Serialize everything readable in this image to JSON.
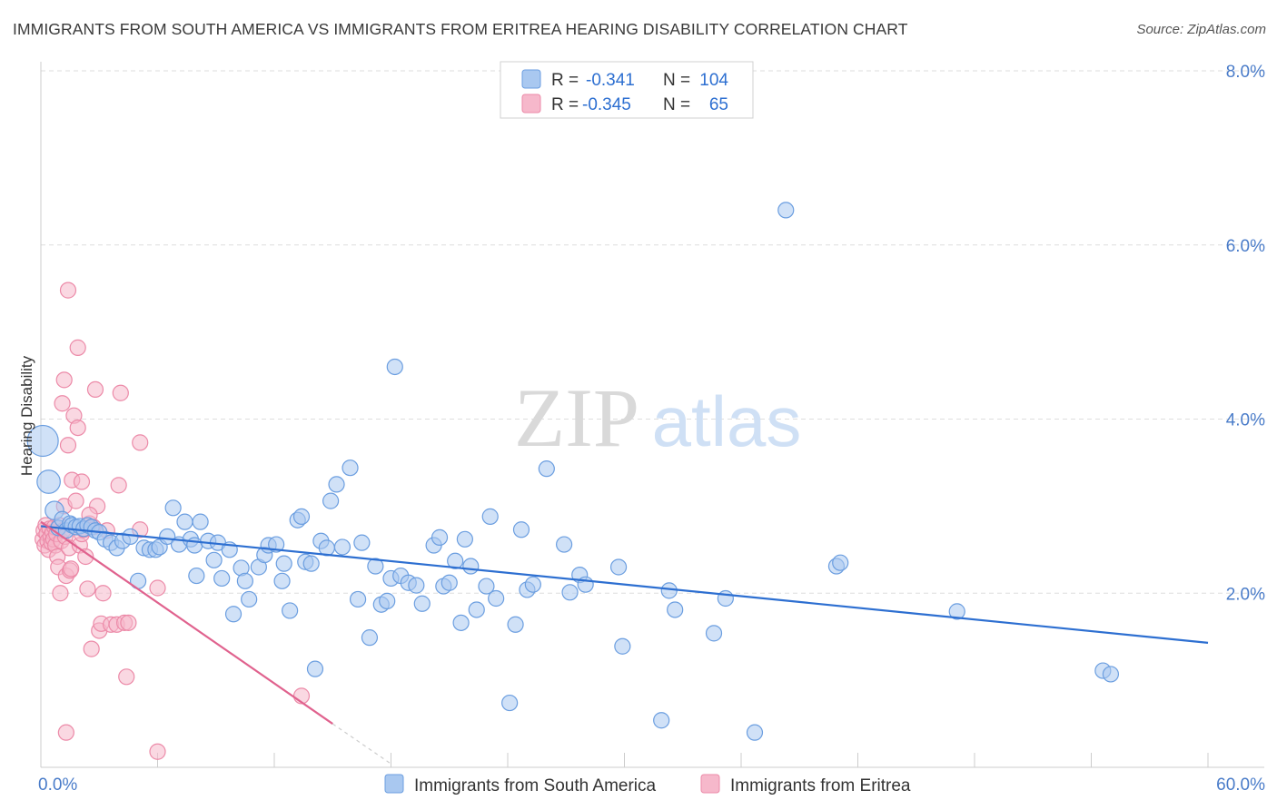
{
  "title": "IMMIGRANTS FROM SOUTH AMERICA VS IMMIGRANTS FROM ERITREA HEARING DISABILITY CORRELATION CHART",
  "source": "Source: ZipAtlas.com",
  "watermark": {
    "zip": "ZIP",
    "atlas": "atlas"
  },
  "colors": {
    "blue_fill": "#a9c8f0",
    "blue_stroke": "#6b9ee0",
    "blue_line": "#2d6fd1",
    "pink_fill": "#f6b8cb",
    "pink_stroke": "#ec8aa8",
    "pink_line": "#e0628e",
    "tick_text": "#4a7cc9",
    "grid": "#dddddd"
  },
  "legend": {
    "rows": [
      {
        "r_label": "R =",
        "r_value": "-0.341",
        "n_label": "N =",
        "n_value": "104"
      },
      {
        "r_label": "R =",
        "r_value": "-0.345",
        "n_label": "N =",
        "n_value": "65"
      }
    ]
  },
  "chart_data": {
    "type": "scatter",
    "title": "IMMIGRANTS FROM SOUTH AMERICA VS IMMIGRANTS FROM ERITREA HEARING DISABILITY CORRELATION CHART",
    "xlabel": "",
    "ylabel": "Hearing Disability",
    "xlim": [
      0,
      60
    ],
    "ylim": [
      0,
      8
    ],
    "x_tick_labels": [
      "0.0%",
      "60.0%"
    ],
    "y_ticks": [
      2,
      4,
      6,
      8
    ],
    "y_tick_labels": [
      "2.0%",
      "4.0%",
      "6.0%",
      "8.0%"
    ],
    "grid": true,
    "legend_position": "top-center",
    "series": [
      {
        "name": "Immigrants from South America",
        "color": "#a9c8f0",
        "trend": {
          "x": [
            0,
            60
          ],
          "y": [
            2.77,
            1.43
          ]
        },
        "points": [
          {
            "x": 0.1,
            "y": 3.75,
            "s": 2
          },
          {
            "x": 0.4,
            "y": 3.28,
            "s": 1.5
          },
          {
            "x": 0.7,
            "y": 2.95,
            "s": 1.2
          },
          {
            "x": 0.9,
            "y": 2.75
          },
          {
            "x": 1.1,
            "y": 2.85
          },
          {
            "x": 1.3,
            "y": 2.72
          },
          {
            "x": 1.5,
            "y": 2.8
          },
          {
            "x": 1.6,
            "y": 2.78
          },
          {
            "x": 1.8,
            "y": 2.76
          },
          {
            "x": 2.0,
            "y": 2.77
          },
          {
            "x": 2.2,
            "y": 2.74
          },
          {
            "x": 2.4,
            "y": 2.78
          },
          {
            "x": 2.6,
            "y": 2.76
          },
          {
            "x": 2.8,
            "y": 2.72
          },
          {
            "x": 3.0,
            "y": 2.7
          },
          {
            "x": 3.3,
            "y": 2.62
          },
          {
            "x": 3.6,
            "y": 2.58
          },
          {
            "x": 3.9,
            "y": 2.52
          },
          {
            "x": 4.2,
            "y": 2.6
          },
          {
            "x": 4.6,
            "y": 2.65
          },
          {
            "x": 5.0,
            "y": 2.14
          },
          {
            "x": 5.3,
            "y": 2.52
          },
          {
            "x": 5.6,
            "y": 2.5
          },
          {
            "x": 5.9,
            "y": 2.5
          },
          {
            "x": 6.1,
            "y": 2.53
          },
          {
            "x": 6.5,
            "y": 2.65
          },
          {
            "x": 6.8,
            "y": 2.98
          },
          {
            "x": 7.1,
            "y": 2.56
          },
          {
            "x": 7.4,
            "y": 2.82
          },
          {
            "x": 7.7,
            "y": 2.62
          },
          {
            "x": 7.9,
            "y": 2.55
          },
          {
            "x": 8.0,
            "y": 2.2
          },
          {
            "x": 8.2,
            "y": 2.82
          },
          {
            "x": 8.6,
            "y": 2.6
          },
          {
            "x": 8.9,
            "y": 2.38
          },
          {
            "x": 9.1,
            "y": 2.58
          },
          {
            "x": 9.3,
            "y": 2.17
          },
          {
            "x": 9.7,
            "y": 2.5
          },
          {
            "x": 9.9,
            "y": 1.76
          },
          {
            "x": 10.3,
            "y": 2.29
          },
          {
            "x": 10.5,
            "y": 2.14
          },
          {
            "x": 10.7,
            "y": 1.93
          },
          {
            "x": 11.2,
            "y": 2.3
          },
          {
            "x": 11.5,
            "y": 2.44
          },
          {
            "x": 11.7,
            "y": 2.55
          },
          {
            "x": 12.1,
            "y": 2.56
          },
          {
            "x": 12.4,
            "y": 2.14
          },
          {
            "x": 12.5,
            "y": 2.34
          },
          {
            "x": 12.8,
            "y": 1.8
          },
          {
            "x": 13.2,
            "y": 2.84
          },
          {
            "x": 13.4,
            "y": 2.88
          },
          {
            "x": 13.6,
            "y": 2.36
          },
          {
            "x": 13.9,
            "y": 2.34
          },
          {
            "x": 14.1,
            "y": 1.13
          },
          {
            "x": 14.4,
            "y": 2.6
          },
          {
            "x": 14.7,
            "y": 2.52
          },
          {
            "x": 14.9,
            "y": 3.06
          },
          {
            "x": 15.2,
            "y": 3.25
          },
          {
            "x": 15.5,
            "y": 2.53
          },
          {
            "x": 15.9,
            "y": 3.44
          },
          {
            "x": 16.3,
            "y": 1.93
          },
          {
            "x": 16.5,
            "y": 2.58
          },
          {
            "x": 16.9,
            "y": 1.49
          },
          {
            "x": 17.2,
            "y": 2.31
          },
          {
            "x": 17.5,
            "y": 1.87
          },
          {
            "x": 17.8,
            "y": 1.91
          },
          {
            "x": 18.0,
            "y": 2.17
          },
          {
            "x": 18.2,
            "y": 4.6
          },
          {
            "x": 18.5,
            "y": 2.2
          },
          {
            "x": 18.9,
            "y": 2.12
          },
          {
            "x": 19.3,
            "y": 2.09
          },
          {
            "x": 19.6,
            "y": 1.88
          },
          {
            "x": 20.2,
            "y": 2.55
          },
          {
            "x": 20.5,
            "y": 2.64
          },
          {
            "x": 20.7,
            "y": 2.08
          },
          {
            "x": 21.0,
            "y": 2.12
          },
          {
            "x": 21.3,
            "y": 2.37
          },
          {
            "x": 21.6,
            "y": 1.66
          },
          {
            "x": 21.8,
            "y": 2.62
          },
          {
            "x": 22.1,
            "y": 2.31
          },
          {
            "x": 22.4,
            "y": 1.81
          },
          {
            "x": 22.9,
            "y": 2.08
          },
          {
            "x": 23.1,
            "y": 2.88
          },
          {
            "x": 23.4,
            "y": 1.94
          },
          {
            "x": 24.1,
            "y": 0.74
          },
          {
            "x": 24.4,
            "y": 1.64
          },
          {
            "x": 24.7,
            "y": 2.73
          },
          {
            "x": 25.0,
            "y": 2.04
          },
          {
            "x": 25.3,
            "y": 2.1
          },
          {
            "x": 26.0,
            "y": 3.43
          },
          {
            "x": 26.9,
            "y": 2.56
          },
          {
            "x": 27.2,
            "y": 2.01
          },
          {
            "x": 27.7,
            "y": 2.21
          },
          {
            "x": 28.0,
            "y": 2.1
          },
          {
            "x": 29.7,
            "y": 2.3
          },
          {
            "x": 29.9,
            "y": 1.39
          },
          {
            "x": 31.9,
            "y": 0.54
          },
          {
            "x": 32.3,
            "y": 2.03
          },
          {
            "x": 32.6,
            "y": 1.81
          },
          {
            "x": 34.6,
            "y": 1.54
          },
          {
            "x": 35.2,
            "y": 1.94
          },
          {
            "x": 36.7,
            "y": 0.4
          },
          {
            "x": 38.3,
            "y": 6.4
          },
          {
            "x": 40.9,
            "y": 2.31
          },
          {
            "x": 41.1,
            "y": 2.35
          },
          {
            "x": 47.1,
            "y": 1.79
          },
          {
            "x": 54.6,
            "y": 1.11
          },
          {
            "x": 55.0,
            "y": 1.07
          }
        ]
      },
      {
        "name": "Immigrants from Eritrea",
        "color": "#f6b8cb",
        "trend": {
          "x": [
            0,
            15
          ],
          "y": [
            2.82,
            0.5
          ]
        },
        "trend_dashed": {
          "x": [
            15,
            18
          ],
          "y": [
            0.5,
            0.04
          ]
        },
        "points": [
          {
            "x": 0.1,
            "y": 2.62
          },
          {
            "x": 0.15,
            "y": 2.72
          },
          {
            "x": 0.2,
            "y": 2.55
          },
          {
            "x": 0.25,
            "y": 2.78
          },
          {
            "x": 0.3,
            "y": 2.68
          },
          {
            "x": 0.35,
            "y": 2.6
          },
          {
            "x": 0.4,
            "y": 2.5
          },
          {
            "x": 0.45,
            "y": 2.74
          },
          {
            "x": 0.5,
            "y": 2.65
          },
          {
            "x": 0.55,
            "y": 2.58
          },
          {
            "x": 0.6,
            "y": 2.7
          },
          {
            "x": 0.65,
            "y": 2.62
          },
          {
            "x": 0.7,
            "y": 2.76
          },
          {
            "x": 0.75,
            "y": 2.55
          },
          {
            "x": 0.8,
            "y": 2.68
          },
          {
            "x": 0.85,
            "y": 2.42
          },
          {
            "x": 0.9,
            "y": 2.3
          },
          {
            "x": 0.95,
            "y": 2.78
          },
          {
            "x": 1.0,
            "y": 2.0
          },
          {
            "x": 1.05,
            "y": 2.6
          },
          {
            "x": 1.1,
            "y": 4.18
          },
          {
            "x": 1.15,
            "y": 2.72
          },
          {
            "x": 1.2,
            "y": 3.0
          },
          {
            "x": 1.25,
            "y": 2.65
          },
          {
            "x": 1.3,
            "y": 2.2
          },
          {
            "x": 1.4,
            "y": 3.7
          },
          {
            "x": 1.45,
            "y": 2.52
          },
          {
            "x": 1.5,
            "y": 2.26
          },
          {
            "x": 1.55,
            "y": 2.28
          },
          {
            "x": 1.6,
            "y": 3.3
          },
          {
            "x": 1.2,
            "y": 4.45
          },
          {
            "x": 1.3,
            "y": 0.4
          },
          {
            "x": 1.4,
            "y": 5.48
          },
          {
            "x": 1.7,
            "y": 4.04
          },
          {
            "x": 1.8,
            "y": 3.06
          },
          {
            "x": 1.9,
            "y": 3.9
          },
          {
            "x": 2.0,
            "y": 2.55
          },
          {
            "x": 2.1,
            "y": 2.68
          },
          {
            "x": 2.2,
            "y": 2.73
          },
          {
            "x": 2.3,
            "y": 2.42
          },
          {
            "x": 2.4,
            "y": 2.05
          },
          {
            "x": 1.9,
            "y": 4.82
          },
          {
            "x": 2.5,
            "y": 2.8
          },
          {
            "x": 2.6,
            "y": 1.36
          },
          {
            "x": 2.7,
            "y": 2.76
          },
          {
            "x": 2.8,
            "y": 4.34
          },
          {
            "x": 2.9,
            "y": 3.0
          },
          {
            "x": 3.0,
            "y": 1.57
          },
          {
            "x": 3.1,
            "y": 1.65
          },
          {
            "x": 3.2,
            "y": 2.0
          },
          {
            "x": 3.4,
            "y": 2.72
          },
          {
            "x": 2.1,
            "y": 3.28
          },
          {
            "x": 3.6,
            "y": 1.64
          },
          {
            "x": 3.9,
            "y": 1.64
          },
          {
            "x": 4.0,
            "y": 3.24
          },
          {
            "x": 4.1,
            "y": 4.3
          },
          {
            "x": 4.3,
            "y": 1.66
          },
          {
            "x": 4.5,
            "y": 1.66
          },
          {
            "x": 4.4,
            "y": 1.04
          },
          {
            "x": 5.1,
            "y": 2.73
          },
          {
            "x": 5.1,
            "y": 3.73
          },
          {
            "x": 6.0,
            "y": 2.06
          },
          {
            "x": 6.0,
            "y": 0.18
          },
          {
            "x": 13.4,
            "y": 0.82
          },
          {
            "x": 2.5,
            "y": 2.9
          }
        ]
      }
    ]
  }
}
